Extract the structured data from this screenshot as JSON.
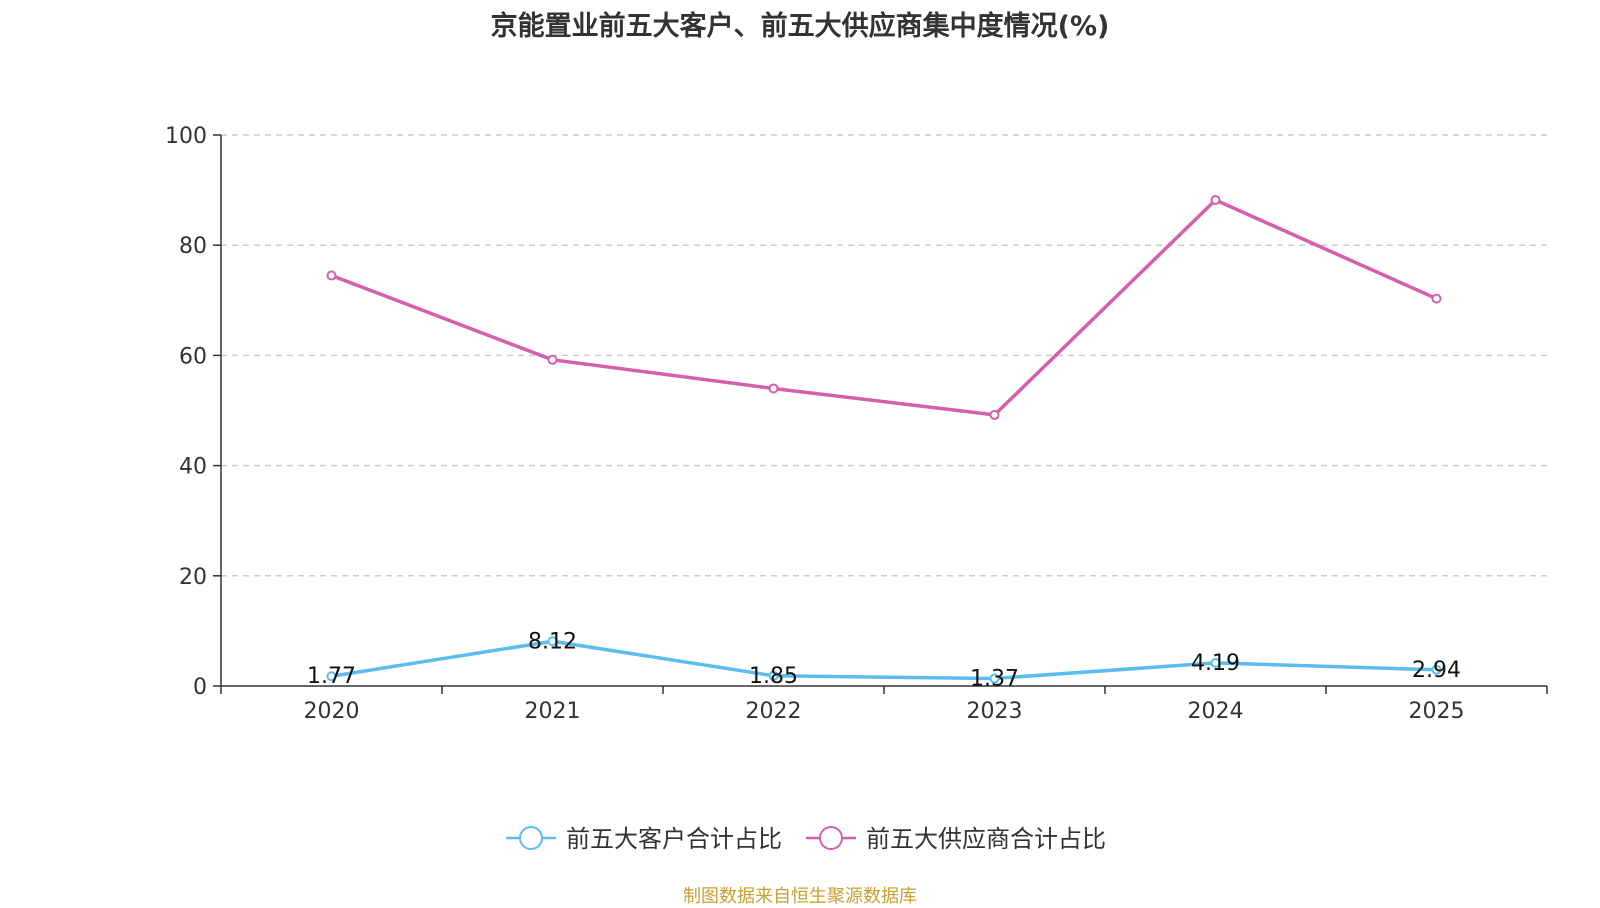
{
  "chart_data": {
    "type": "line",
    "title": "京能置业前五大客户、前五大供应商集中度情况(%)",
    "categories": [
      "2020",
      "2021",
      "2022",
      "2023",
      "2024",
      "2025"
    ],
    "ylim": [
      0,
      100
    ],
    "yticks": [
      "0",
      "20",
      "40",
      "60",
      "80",
      "100"
    ],
    "grid": true,
    "legend_position": "bottom-center",
    "series": [
      {
        "name": "前五大客户合计占比",
        "color": "#5bbcee",
        "values": [
          1.77,
          8.12,
          1.85,
          1.37,
          4.19,
          2.94
        ],
        "labels": [
          "1.77",
          "8.12",
          "1.85",
          "1.37",
          "4.19",
          "2.94"
        ]
      },
      {
        "name": "前五大供应商合计占比",
        "color": "#d45fac",
        "values": [
          74.5,
          59.2,
          54.0,
          49.2,
          88.2,
          70.3
        ]
      }
    ]
  },
  "source_note": "制图数据来自恒生聚源数据库"
}
